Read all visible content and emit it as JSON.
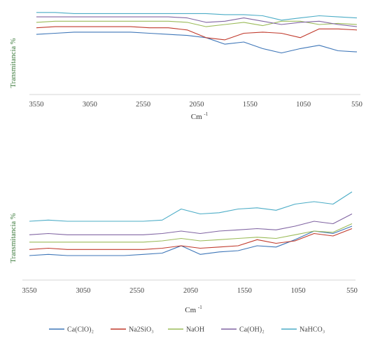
{
  "chart_data": [
    {
      "type": "line",
      "ylabel": "Transmitancia %",
      "xlabel": "Cm",
      "xlabel_sup": "-1",
      "x_ticks": [
        "3550",
        "3050",
        "2550",
        "2050",
        "1550",
        "1050",
        "550"
      ],
      "x_range": [
        3550,
        550
      ],
      "x_reversed": true,
      "grid": false,
      "series": [
        {
          "name": "Ca(ClO)₂",
          "color": "#3e76b8",
          "y": [
            55,
            56,
            57,
            57,
            57,
            57,
            56,
            55,
            54,
            52,
            46,
            48,
            42,
            38,
            42,
            45,
            40,
            39
          ]
        },
        {
          "name": "Na2SiO₃",
          "color": "#c0392b",
          "y": [
            61,
            62,
            62,
            62,
            62,
            62,
            61,
            61,
            59,
            52,
            50,
            56,
            57,
            56,
            52,
            60,
            60,
            59
          ]
        },
        {
          "name": "NaOH",
          "color": "#9bbb59",
          "y": [
            66,
            67,
            67,
            67,
            67,
            67,
            67,
            67,
            66,
            62,
            64,
            66,
            63,
            67,
            67,
            64,
            65,
            64
          ]
        },
        {
          "name": "Ca(OH)₂",
          "color": "#8064a2",
          "y": [
            71,
            71,
            71,
            71,
            71,
            71,
            71,
            71,
            70,
            66,
            67,
            70,
            67,
            64,
            66,
            67,
            64,
            62
          ]
        },
        {
          "name": "NaHCO₃",
          "color": "#4bacc6",
          "y": [
            75,
            75,
            74,
            74,
            74,
            74,
            74,
            74,
            74,
            74,
            73,
            73,
            72,
            68,
            70,
            72,
            71,
            70
          ]
        }
      ]
    },
    {
      "type": "line",
      "ylabel": "Transmitancia %",
      "xlabel": "Cm",
      "xlabel_sup": "-1",
      "x_ticks": [
        "3550",
        "3050",
        "2550",
        "2050",
        "1550",
        "1050",
        "550"
      ],
      "x_range": [
        3550,
        550
      ],
      "x_reversed": true,
      "grid": false,
      "series": [
        {
          "name": "Ca(ClO)₂",
          "color": "#3e76b8",
          "y": [
            20,
            21,
            20,
            20,
            20,
            20,
            21,
            22,
            28,
            21,
            23,
            24,
            28,
            27,
            33,
            40,
            38,
            44
          ]
        },
        {
          "name": "Na2SiO₃",
          "color": "#c0392b",
          "y": [
            25,
            26,
            25,
            25,
            25,
            25,
            25,
            26,
            28,
            26,
            27,
            28,
            33,
            30,
            32,
            38,
            36,
            42
          ]
        },
        {
          "name": "NaOH",
          "color": "#9bbb59",
          "y": [
            31,
            31,
            31,
            31,
            31,
            31,
            31,
            32,
            34,
            32,
            33,
            34,
            35,
            34,
            37,
            40,
            39,
            46
          ]
        },
        {
          "name": "Ca(OH)₂",
          "color": "#8064a2",
          "y": [
            37,
            38,
            37,
            37,
            37,
            37,
            37,
            38,
            40,
            38,
            40,
            41,
            42,
            41,
            44,
            48,
            46,
            54
          ]
        },
        {
          "name": "NaHCO₃",
          "color": "#4bacc6",
          "y": [
            48,
            49,
            48,
            48,
            48,
            48,
            48,
            49,
            58,
            54,
            55,
            58,
            59,
            57,
            62,
            64,
            62,
            72
          ]
        }
      ]
    }
  ],
  "legend": [
    {
      "name": "Ca(ClO)₂",
      "color": "#3e76b8"
    },
    {
      "name": "Na2SiO₃",
      "color": "#c0392b"
    },
    {
      "name": "NaOH",
      "color": "#9bbb59"
    },
    {
      "name": "Ca(OH)₂",
      "color": "#8064a2"
    },
    {
      "name": "NaHCO₃",
      "color": "#4bacc6"
    }
  ]
}
